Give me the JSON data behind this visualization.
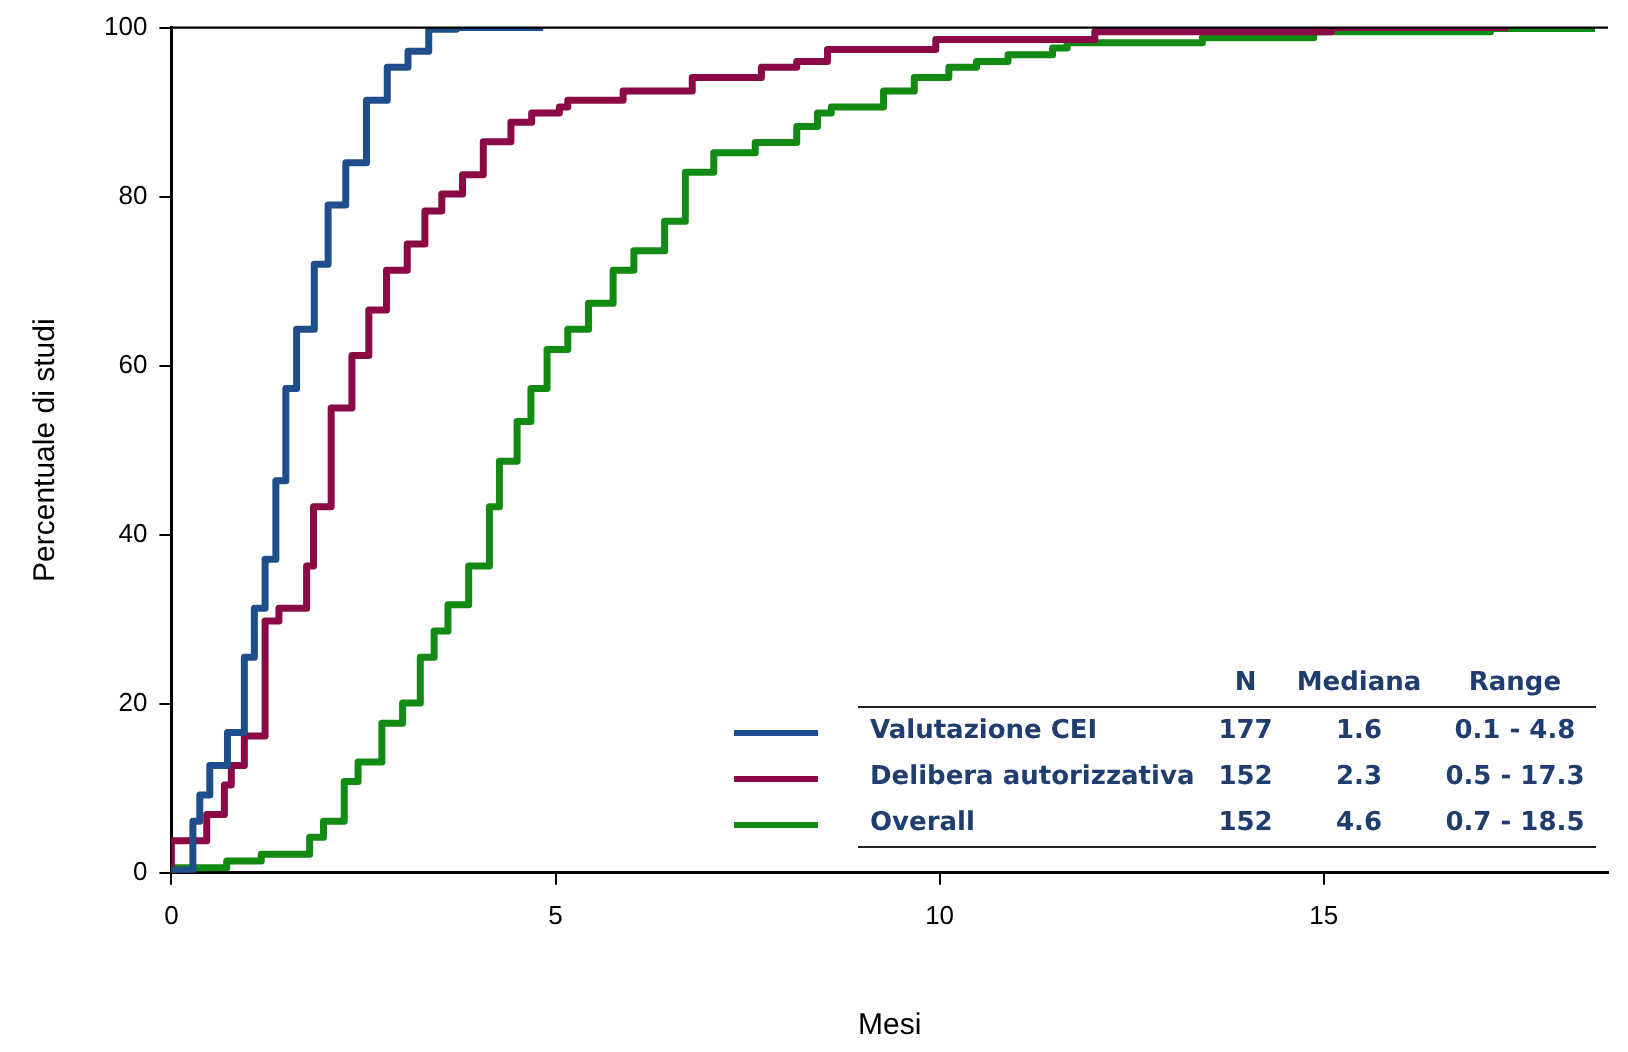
{
  "chart_data": {
    "type": "step",
    "xlabel": "Mesi",
    "ylabel": "Percentuale di studi",
    "xlim": [
      0,
      18.7
    ],
    "xticks": [
      0,
      5,
      10,
      15
    ],
    "ylim": [
      0,
      100
    ],
    "yticks": [
      0,
      20,
      40,
      60,
      80,
      100
    ],
    "grid": false,
    "legend": "bottom right",
    "marker": "none",
    "line_style": "solid",
    "annotations": [
      "N",
      "Mediana",
      "Range",
      "177",
      "1.6",
      "0.1 - 4.8",
      "152",
      "2.3",
      "0.5 - 17.3",
      "152",
      "4.6",
      "0.7 - 18.5"
    ],
    "series": [
      {
        "name": "Valutazione CEI",
        "color": "#1f4e8c",
        "x": [
          0,
          0.28,
          0.37,
          0.5,
          0.73,
          0.95,
          1.08,
          1.22,
          1.36,
          1.49,
          1.63,
          1.86,
          2.04,
          2.27,
          2.54,
          2.81,
          3.08,
          3.35,
          3.71,
          4.84
        ],
        "values": [
          0,
          0.3,
          6.1,
          9.2,
          12.7,
          16.6,
          25.5,
          31.3,
          37.1,
          46.4,
          57.3,
          64.3,
          72,
          79,
          84,
          91.4,
          95.3,
          97.2,
          99.8,
          100
        ]
      },
      {
        "name": "Delibera autorizzativa",
        "color": "#8b0a45",
        "x": [
          0,
          0.46,
          0.69,
          0.78,
          0.95,
          1.22,
          1.4,
          1.76,
          1.85,
          2.08,
          2.35,
          2.57,
          2.8,
          3.07,
          3.3,
          3.52,
          3.79,
          4.06,
          4.42,
          4.69,
          5.05,
          5.16,
          5.88,
          6.78,
          7.68,
          8.14,
          8.54,
          9.95,
          12.02,
          15.1,
          17.4
        ],
        "values": [
          0,
          3.8,
          6.9,
          10.4,
          12.7,
          16.2,
          29.8,
          31.3,
          36.3,
          43.3,
          55,
          61.2,
          66.6,
          71.3,
          74.4,
          78.3,
          80.3,
          82.6,
          86.5,
          88.8,
          89.9,
          90.6,
          91.4,
          92.5,
          94.1,
          95.3,
          96,
          97.4,
          98.6,
          99.5,
          100
        ]
      },
      {
        "name": "Overall",
        "color": "#138a13",
        "x": [
          0,
          0.72,
          1.17,
          1.8,
          1.98,
          2.25,
          2.43,
          2.74,
          3.01,
          3.24,
          3.42,
          3.6,
          3.87,
          4.14,
          4.27,
          4.5,
          4.68,
          4.89,
          5.16,
          5.43,
          5.75,
          6.02,
          6.42,
          6.69,
          7.06,
          7.6,
          8.14,
          8.41,
          8.59,
          9.27,
          9.67,
          10.12,
          10.48,
          10.89,
          11.47,
          11.66,
          13.42,
          14.87,
          17.17,
          18.53
        ],
        "values": [
          0,
          0.6,
          1.4,
          2.2,
          4.2,
          6.1,
          10.8,
          13.1,
          17.7,
          20.1,
          25.5,
          28.6,
          31.7,
          36.3,
          43.3,
          48.7,
          53.4,
          57.3,
          61.9,
          64.3,
          67.4,
          71.3,
          73.6,
          77.1,
          82.9,
          85.2,
          86.4,
          88.3,
          89.9,
          90.6,
          92.5,
          94.1,
          95.3,
          96,
          96.8,
          97.6,
          98.2,
          98.8,
          99.5,
          99.9
        ]
      }
    ]
  }
}
